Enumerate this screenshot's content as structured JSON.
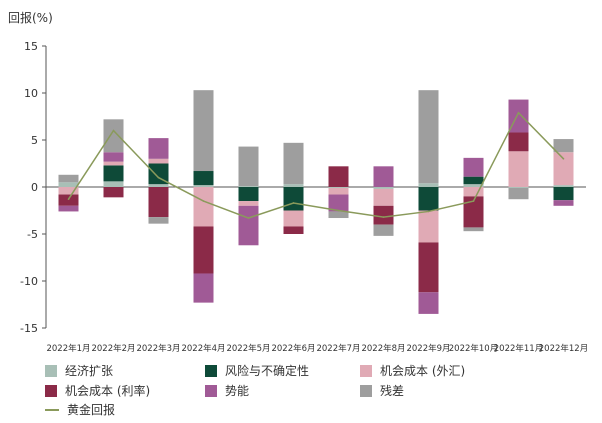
{
  "chart_data": {
    "type": "bar",
    "stacked": true,
    "ylabel": "回报(%)",
    "ylim": [
      -15,
      15
    ],
    "yticks": [
      15,
      10,
      5,
      0,
      -5,
      -10,
      -15
    ],
    "categories": [
      "2022年1月",
      "2022年2月",
      "2022年3月",
      "2022年4月",
      "2022年5月",
      "2022年6月",
      "2022年7月",
      "2022年8月",
      "2022年9月",
      "2022年10月",
      "2022年11月",
      "2022年12月"
    ],
    "series": [
      {
        "name": "经济扩张",
        "color": "#a8bfb6",
        "values": [
          0.5,
          0.6,
          0.3,
          0.2,
          0.1,
          0.3,
          -0.1,
          -0.2,
          0.4,
          0.3,
          -0.1,
          0.2
        ]
      },
      {
        "name": "风险与不确定性",
        "color": "#0e4a38",
        "values": [
          0,
          1.7,
          2.2,
          1.5,
          -1.5,
          -2.5,
          0,
          0,
          -2.5,
          0.8,
          0,
          -1.4
        ]
      },
      {
        "name": "机会成本 (外汇)",
        "color": "#e0aab5",
        "values": [
          -0.8,
          0.4,
          0.5,
          -4.2,
          -0.5,
          -1.7,
          -0.7,
          -1.8,
          -3.4,
          -1.0,
          3.8,
          3.5
        ]
      },
      {
        "name": "机会成本 (利率)",
        "color": "#8b2a48",
        "values": [
          -1.2,
          -1.1,
          -3.2,
          -5.0,
          0,
          -0.8,
          2.2,
          -2.0,
          -5.3,
          -3.3,
          2.0,
          0
        ]
      },
      {
        "name": "势能",
        "color": "#a05a96",
        "values": [
          -0.6,
          1.0,
          2.2,
          -3.1,
          -4.2,
          0,
          -1.8,
          2.2,
          -2.3,
          2.0,
          3.5,
          -0.6
        ]
      },
      {
        "name": "残差",
        "color": "#9e9e9e",
        "values": [
          0.8,
          3.5,
          -0.7,
          8.6,
          4.2,
          4.4,
          -0.7,
          -1.2,
          9.9,
          -0.4,
          -1.2,
          1.4
        ]
      }
    ],
    "line_series": {
      "name": "黄金回报",
      "color": "#8a9a5b",
      "values": [
        -1.3,
        6.0,
        1.0,
        -1.5,
        -3.3,
        -1.7,
        -2.5,
        -3.2,
        -2.6,
        -1.5,
        7.9,
        3.0
      ]
    }
  }
}
